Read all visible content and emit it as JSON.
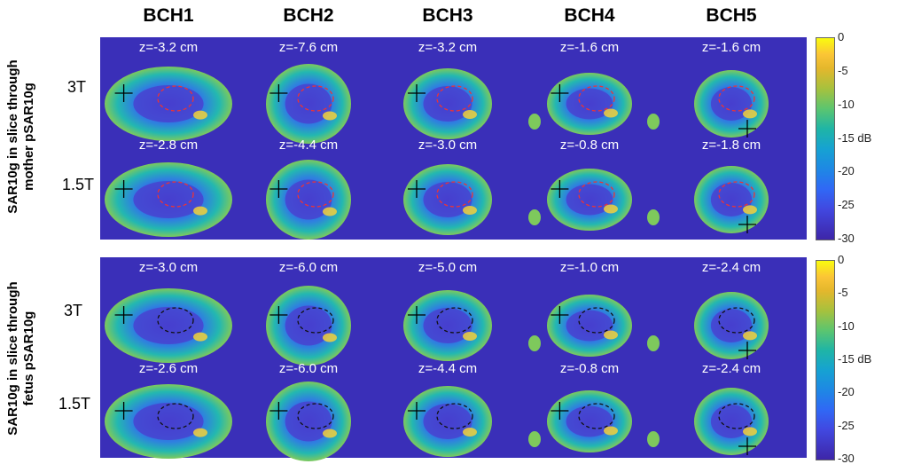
{
  "columns": [
    "BCH1",
    "BCH2",
    "BCH3",
    "BCH4",
    "BCH5"
  ],
  "field_labels": [
    "3T",
    "1.5T"
  ],
  "sections": [
    {
      "side_label_lines": [
        "SAR10g in slice through",
        "mother pSAR10g"
      ],
      "rows": [
        {
          "field": "3T",
          "z": [
            "z=-3.2 cm",
            "z=-7.6 cm",
            "z=-3.2 cm",
            "z=-1.6 cm",
            "z=-1.6 cm"
          ]
        },
        {
          "field": "1.5T",
          "z": [
            "z=-2.8 cm",
            "z=-4.4 cm",
            "z=-3.0 cm",
            "z=-0.8 cm",
            "z=-1.8 cm"
          ]
        }
      ]
    },
    {
      "side_label_lines": [
        "SAR10g in slice through",
        "fetus pSAR10g"
      ],
      "rows": [
        {
          "field": "3T",
          "z": [
            "z=-3.0 cm",
            "z=-6.0 cm",
            "z=-5.0 cm",
            "z=-1.0 cm",
            "z=-2.4 cm"
          ]
        },
        {
          "field": "1.5T",
          "z": [
            "z=-2.6 cm",
            "z=-6.0 cm",
            "z=-4.4 cm",
            "z=-0.8 cm",
            "z=-2.4 cm"
          ]
        }
      ]
    }
  ],
  "colorbar": {
    "ticks": [
      "0",
      "-5",
      "-10",
      "-15 dB",
      "-20",
      "-25",
      "-30"
    ],
    "colors": {
      "top": "#f9fb0e",
      "bottom": "#3e26a8",
      "background": "#3a2fb8"
    }
  }
}
